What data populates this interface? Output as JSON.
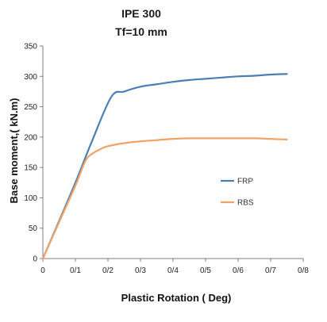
{
  "chart_data": {
    "type": "line",
    "title": "IPE 300",
    "subtitle": "Tf=10 mm",
    "xlabel": "Plastic Rotation ( Deg)",
    "ylabel": "Base moment,( kN.m)",
    "xlim": [
      0,
      0.8
    ],
    "ylim": [
      0,
      350
    ],
    "x_ticks": [
      0,
      0.1,
      0.2,
      0.3,
      0.4,
      0.5,
      0.6,
      0.7,
      0.8
    ],
    "x_tick_labels": [
      "0",
      "0/1",
      "0/2",
      "0/3",
      "0/4",
      "0/5",
      "0/6",
      "0/7",
      "0/8"
    ],
    "y_ticks": [
      0,
      50,
      100,
      150,
      200,
      250,
      300,
      350
    ],
    "y_tick_labels": [
      "0",
      "50",
      "100",
      "150",
      "200",
      "250",
      "300",
      "350"
    ],
    "grid": false,
    "legend_position": "right",
    "series": [
      {
        "name": "FRP",
        "color": "#4a7fb5",
        "points": [
          [
            0,
            0
          ],
          [
            0.05,
            62
          ],
          [
            0.1,
            125
          ],
          [
            0.15,
            192
          ],
          [
            0.21,
            266
          ],
          [
            0.25,
            275
          ],
          [
            0.3,
            283
          ],
          [
            0.35,
            287
          ],
          [
            0.4,
            291
          ],
          [
            0.45,
            294
          ],
          [
            0.5,
            296
          ],
          [
            0.55,
            298
          ],
          [
            0.6,
            300
          ],
          [
            0.65,
            301
          ],
          [
            0.7,
            303
          ],
          [
            0.75,
            304
          ]
        ]
      },
      {
        "name": "RBS",
        "color": "#f0a267",
        "points": [
          [
            0,
            0
          ],
          [
            0.05,
            60
          ],
          [
            0.1,
            120
          ],
          [
            0.13,
            160
          ],
          [
            0.15,
            172
          ],
          [
            0.18,
            181
          ],
          [
            0.2,
            185
          ],
          [
            0.25,
            190
          ],
          [
            0.3,
            193
          ],
          [
            0.35,
            195
          ],
          [
            0.4,
            197
          ],
          [
            0.45,
            198
          ],
          [
            0.5,
            198
          ],
          [
            0.55,
            198
          ],
          [
            0.6,
            198
          ],
          [
            0.65,
            198
          ],
          [
            0.7,
            197
          ],
          [
            0.75,
            196
          ]
        ]
      }
    ]
  }
}
